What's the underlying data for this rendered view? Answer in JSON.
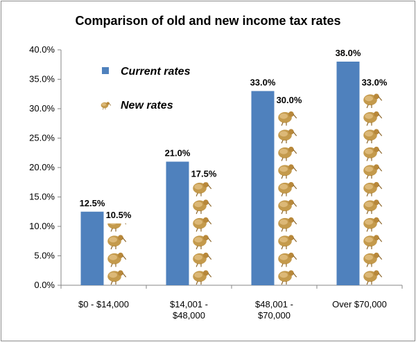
{
  "chart_data": {
    "type": "bar",
    "title": "Comparison of old and new income tax rates",
    "categories": [
      "$0 - $14,000",
      "$14,001 - $48,000",
      "$48,001 - $70,000",
      "Over $70,000"
    ],
    "category_lines": [
      [
        "$0 - $14,000"
      ],
      [
        "$14,001 -",
        "$48,000"
      ],
      [
        "$48,001 -",
        "$70,000"
      ],
      [
        "Over $70,000"
      ]
    ],
    "series": [
      {
        "name": "Current rates",
        "values": [
          12.5,
          21.0,
          33.0,
          38.0
        ],
        "labels": [
          "12.5%",
          "21.0%",
          "33.0%",
          "38.0%"
        ],
        "color": "#4f81bd",
        "style": "solid"
      },
      {
        "name": "New rates",
        "values": [
          10.5,
          17.5,
          30.0,
          33.0
        ],
        "labels": [
          "10.5%",
          "17.5%",
          "30.0%",
          "33.0%"
        ],
        "color": "#c49a4c",
        "style": "kiwi-pictograph"
      }
    ],
    "y_ticks": [
      "0.0%",
      "5.0%",
      "10.0%",
      "15.0%",
      "20.0%",
      "25.0%",
      "30.0%",
      "35.0%",
      "40.0%"
    ],
    "ylim": [
      0,
      40
    ],
    "xlabel": "",
    "ylabel": "",
    "grid": false,
    "legend_position": "top-left inside plot"
  }
}
